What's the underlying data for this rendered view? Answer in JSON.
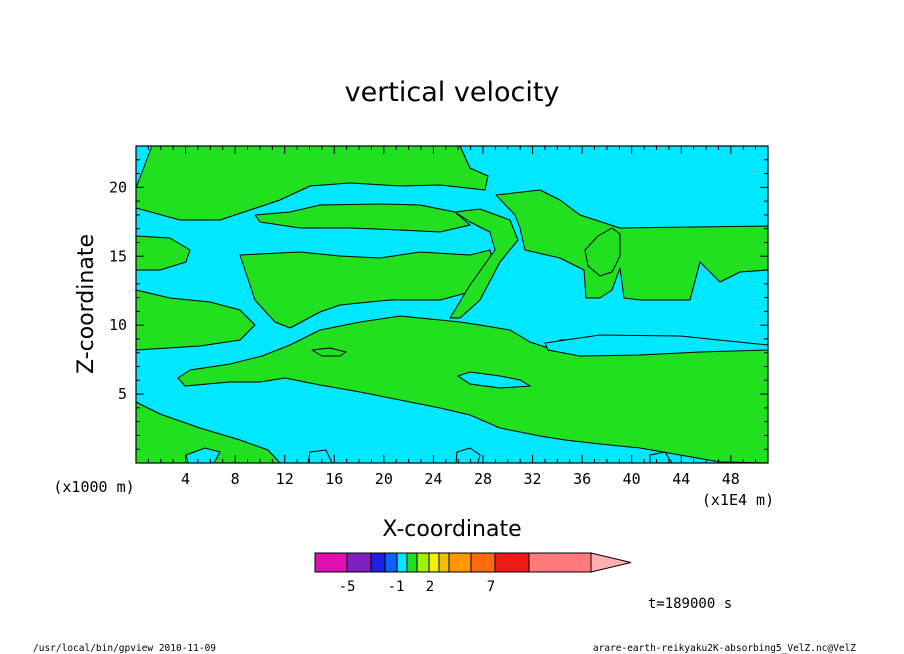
{
  "chart_data": {
    "type": "heatmap",
    "title": "vertical velocity",
    "xlabel": "X-coordinate",
    "ylabel": "Z-coordinate",
    "x_unit_left": "(x1000 m)",
    "x_unit_right": "(x1E4 m)",
    "xlim": [
      0,
      51
    ],
    "ylim": [
      0,
      23
    ],
    "xticks": [
      "4",
      "8",
      "12",
      "16",
      "20",
      "24",
      "28",
      "32",
      "36",
      "40",
      "44",
      "48"
    ],
    "yticks": [
      "5",
      "10",
      "15",
      "20"
    ],
    "colorbar": {
      "colors": [
        "#e010b0",
        "#8020c0",
        "#2020e0",
        "#1060ff",
        "#00e8ff",
        "#20e020",
        "#a0f000",
        "#f0f000",
        "#f0c000",
        "#ff9800",
        "#ff6a10",
        "#f01818",
        "#ff7a7a",
        "#ffb0b0"
      ],
      "tick_labels": [
        "-5",
        "-1",
        "2",
        "7"
      ]
    },
    "region_colors": {
      "background": "#00e8ff",
      "positive": "#20e020"
    },
    "time_label": "t=189000 s"
  },
  "footer": {
    "left": "/usr/local/bin/gpview  2010-11-09",
    "right": "arare-earth-reikyaku2K-absorbing5_VelZ.nc@VelZ"
  }
}
